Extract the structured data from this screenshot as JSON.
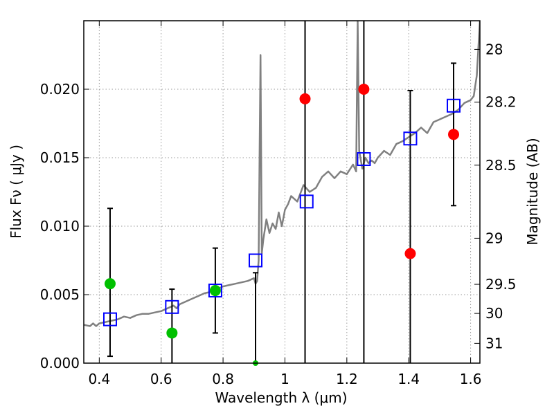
{
  "chart_data": {
    "type": "scatter",
    "xlabel": "Wavelength  λ (μm)",
    "ylabel": "Flux  Fν  ( μJy )",
    "y2label": "Magnitude (AB)",
    "xlim": [
      0.35,
      1.63
    ],
    "ylim": [
      0.0,
      0.025
    ],
    "grid": true,
    "x_ticks": [
      0.4,
      0.6,
      0.8,
      1.0,
      1.2,
      1.4,
      1.6
    ],
    "x_tick_labels": [
      "0.4",
      "0.6",
      "0.8",
      "1",
      "1.2",
      "1.4",
      "1.6"
    ],
    "y_ticks": [
      0.0,
      0.005,
      0.01,
      0.015,
      0.02
    ],
    "y_tick_labels": [
      "0.000",
      "0.005",
      "0.010",
      "0.015",
      "0.020"
    ],
    "y2_ticks": [
      {
        "label": "28",
        "mag": 28.0
      },
      {
        "label": "28.2",
        "mag": 28.2
      },
      {
        "label": "28.5",
        "mag": 28.5
      },
      {
        "label": "29",
        "mag": 29.0
      },
      {
        "label": "29.5",
        "mag": 29.5
      },
      {
        "label": "30",
        "mag": 30.0
      },
      {
        "label": "31",
        "mag": 31.0
      }
    ],
    "colors": {
      "model": "#808080",
      "green": "#00c000",
      "red": "#ff0000",
      "model_photometry": "#0000ff",
      "errorbar": "#000000",
      "grid": "#9a9a9a"
    },
    "model_spectrum": {
      "x": [
        0.35,
        0.37,
        0.38,
        0.39,
        0.4,
        0.42,
        0.44,
        0.46,
        0.48,
        0.5,
        0.52,
        0.54,
        0.56,
        0.58,
        0.6,
        0.62,
        0.64,
        0.65,
        0.66,
        0.68,
        0.7,
        0.72,
        0.74,
        0.76,
        0.78,
        0.8,
        0.82,
        0.84,
        0.86,
        0.88,
        0.9,
        0.905,
        0.91,
        0.915,
        0.918,
        0.921,
        0.925,
        0.93,
        0.94,
        0.95,
        0.96,
        0.97,
        0.98,
        0.99,
        1.0,
        1.01,
        1.02,
        1.04,
        1.06,
        1.08,
        1.1,
        1.12,
        1.14,
        1.16,
        1.18,
        1.2,
        1.22,
        1.23,
        1.235,
        1.24,
        1.25,
        1.26,
        1.27,
        1.28,
        1.29,
        1.3,
        1.32,
        1.34,
        1.36,
        1.38,
        1.4,
        1.42,
        1.44,
        1.46,
        1.48,
        1.5,
        1.52,
        1.54,
        1.56,
        1.58,
        1.6,
        1.61,
        1.62,
        1.63
      ],
      "y": [
        0.0028,
        0.0027,
        0.0029,
        0.0027,
        0.0029,
        0.003,
        0.0031,
        0.0032,
        0.0034,
        0.0033,
        0.0035,
        0.0036,
        0.0036,
        0.0037,
        0.0038,
        0.004,
        0.0042,
        0.004,
        0.0043,
        0.0045,
        0.0047,
        0.0049,
        0.0051,
        0.0052,
        0.0054,
        0.0056,
        0.0057,
        0.0058,
        0.0059,
        0.006,
        0.0062,
        0.0058,
        0.006,
        0.0075,
        0.015,
        0.0225,
        0.008,
        0.009,
        0.0105,
        0.0095,
        0.0102,
        0.0098,
        0.011,
        0.01,
        0.0112,
        0.0116,
        0.0122,
        0.0118,
        0.013,
        0.0125,
        0.0128,
        0.0136,
        0.014,
        0.0135,
        0.014,
        0.0138,
        0.0145,
        0.014,
        0.025,
        0.0155,
        0.0142,
        0.015,
        0.0146,
        0.0148,
        0.0146,
        0.015,
        0.0155,
        0.0152,
        0.016,
        0.0162,
        0.0165,
        0.0168,
        0.0172,
        0.0168,
        0.0176,
        0.0178,
        0.018,
        0.0182,
        0.0185,
        0.019,
        0.0192,
        0.0195,
        0.021,
        0.025
      ]
    },
    "model_photometry": {
      "x": [
        0.435,
        0.635,
        0.775,
        0.905,
        1.07,
        1.255,
        1.405,
        1.545
      ],
      "y": [
        0.0032,
        0.0041,
        0.0053,
        0.0075,
        0.0118,
        0.0149,
        0.0164,
        0.0188
      ]
    },
    "observed_detections": {
      "x": [
        0.435,
        0.635,
        0.775
      ],
      "y": [
        0.0058,
        0.0022,
        0.0053
      ]
    },
    "observed_upper": {
      "x": [
        1.065,
        1.255,
        1.405,
        1.545
      ],
      "y": [
        0.0193,
        0.02,
        0.008,
        0.0167
      ]
    },
    "green_edge_point": {
      "x": 0.905,
      "y": 0.0
    },
    "error_bars": [
      {
        "x": 0.435,
        "low": 0.0005,
        "high": 0.0113
      },
      {
        "x": 0.635,
        "low": 0.0,
        "high": 0.0054
      },
      {
        "x": 0.775,
        "low": 0.0022,
        "high": 0.0084
      },
      {
        "x": 0.905,
        "low": 0.0,
        "high": 0.0066
      },
      {
        "x": 1.065,
        "low": 0.0,
        "high": 0.025
      },
      {
        "x": 1.255,
        "low": 0.0,
        "high": 0.025
      },
      {
        "x": 1.405,
        "low": 0.0,
        "high": 0.0199
      },
      {
        "x": 1.545,
        "low": 0.0115,
        "high": 0.0219
      }
    ]
  }
}
